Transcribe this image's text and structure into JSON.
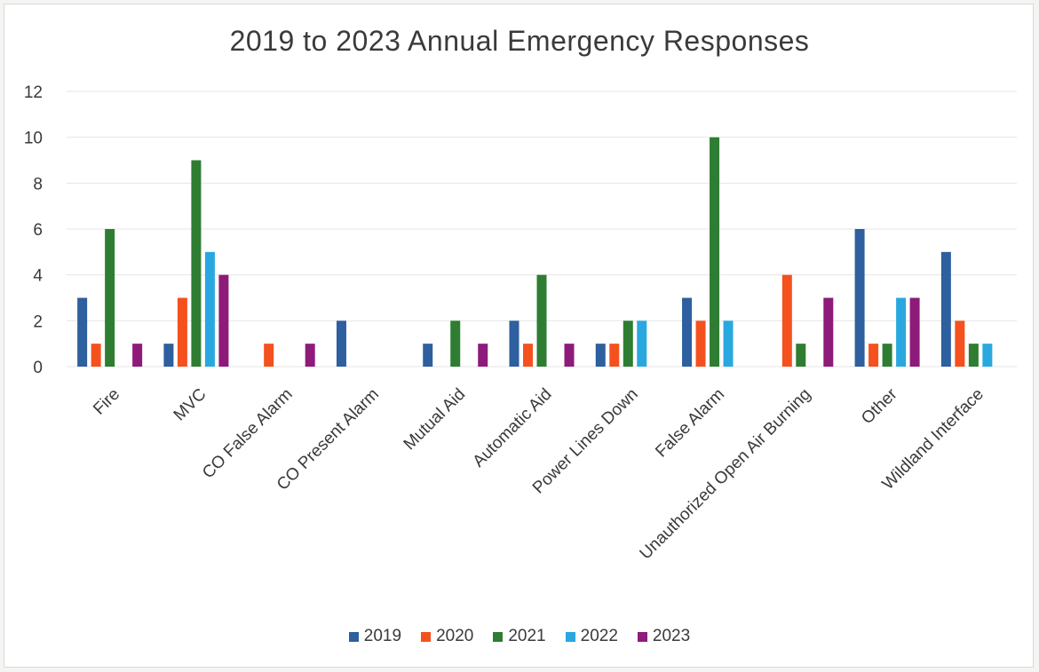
{
  "chart_data": {
    "type": "bar",
    "title": "2019 to 2023 Annual Emergency Responses",
    "xlabel": "",
    "ylabel": "",
    "ylim": [
      0,
      12
    ],
    "yticks": [
      "0",
      "2",
      "4",
      "6",
      "8",
      "10",
      "12"
    ],
    "grid": true,
    "legend_position": "bottom",
    "categories": [
      "Fire",
      "MVC",
      "CO False Alarm",
      "CO Present Alarm",
      "Mutual Aid",
      "Automatic Aid",
      "Power Lines Down",
      "False Alarm",
      "Unauthorized Open Air Burning",
      "Other",
      "Wildland Interface"
    ],
    "series": [
      {
        "name": "2019",
        "color": "#2e5f9e",
        "values": [
          3,
          1,
          null,
          2,
          1,
          2,
          1,
          3,
          null,
          6,
          5
        ]
      },
      {
        "name": "2020",
        "color": "#f4511e",
        "values": [
          1,
          3,
          1,
          null,
          null,
          1,
          1,
          2,
          4,
          1,
          2
        ]
      },
      {
        "name": "2021",
        "color": "#2e7d32",
        "values": [
          6,
          9,
          null,
          null,
          2,
          4,
          2,
          10,
          1,
          1,
          1
        ]
      },
      {
        "name": "2022",
        "color": "#29a8e0",
        "values": [
          null,
          5,
          null,
          null,
          null,
          null,
          2,
          2,
          null,
          3,
          1
        ]
      },
      {
        "name": "2023",
        "color": "#8e1a7a",
        "values": [
          1,
          4,
          1,
          null,
          1,
          1,
          null,
          null,
          3,
          3,
          null
        ]
      }
    ]
  }
}
